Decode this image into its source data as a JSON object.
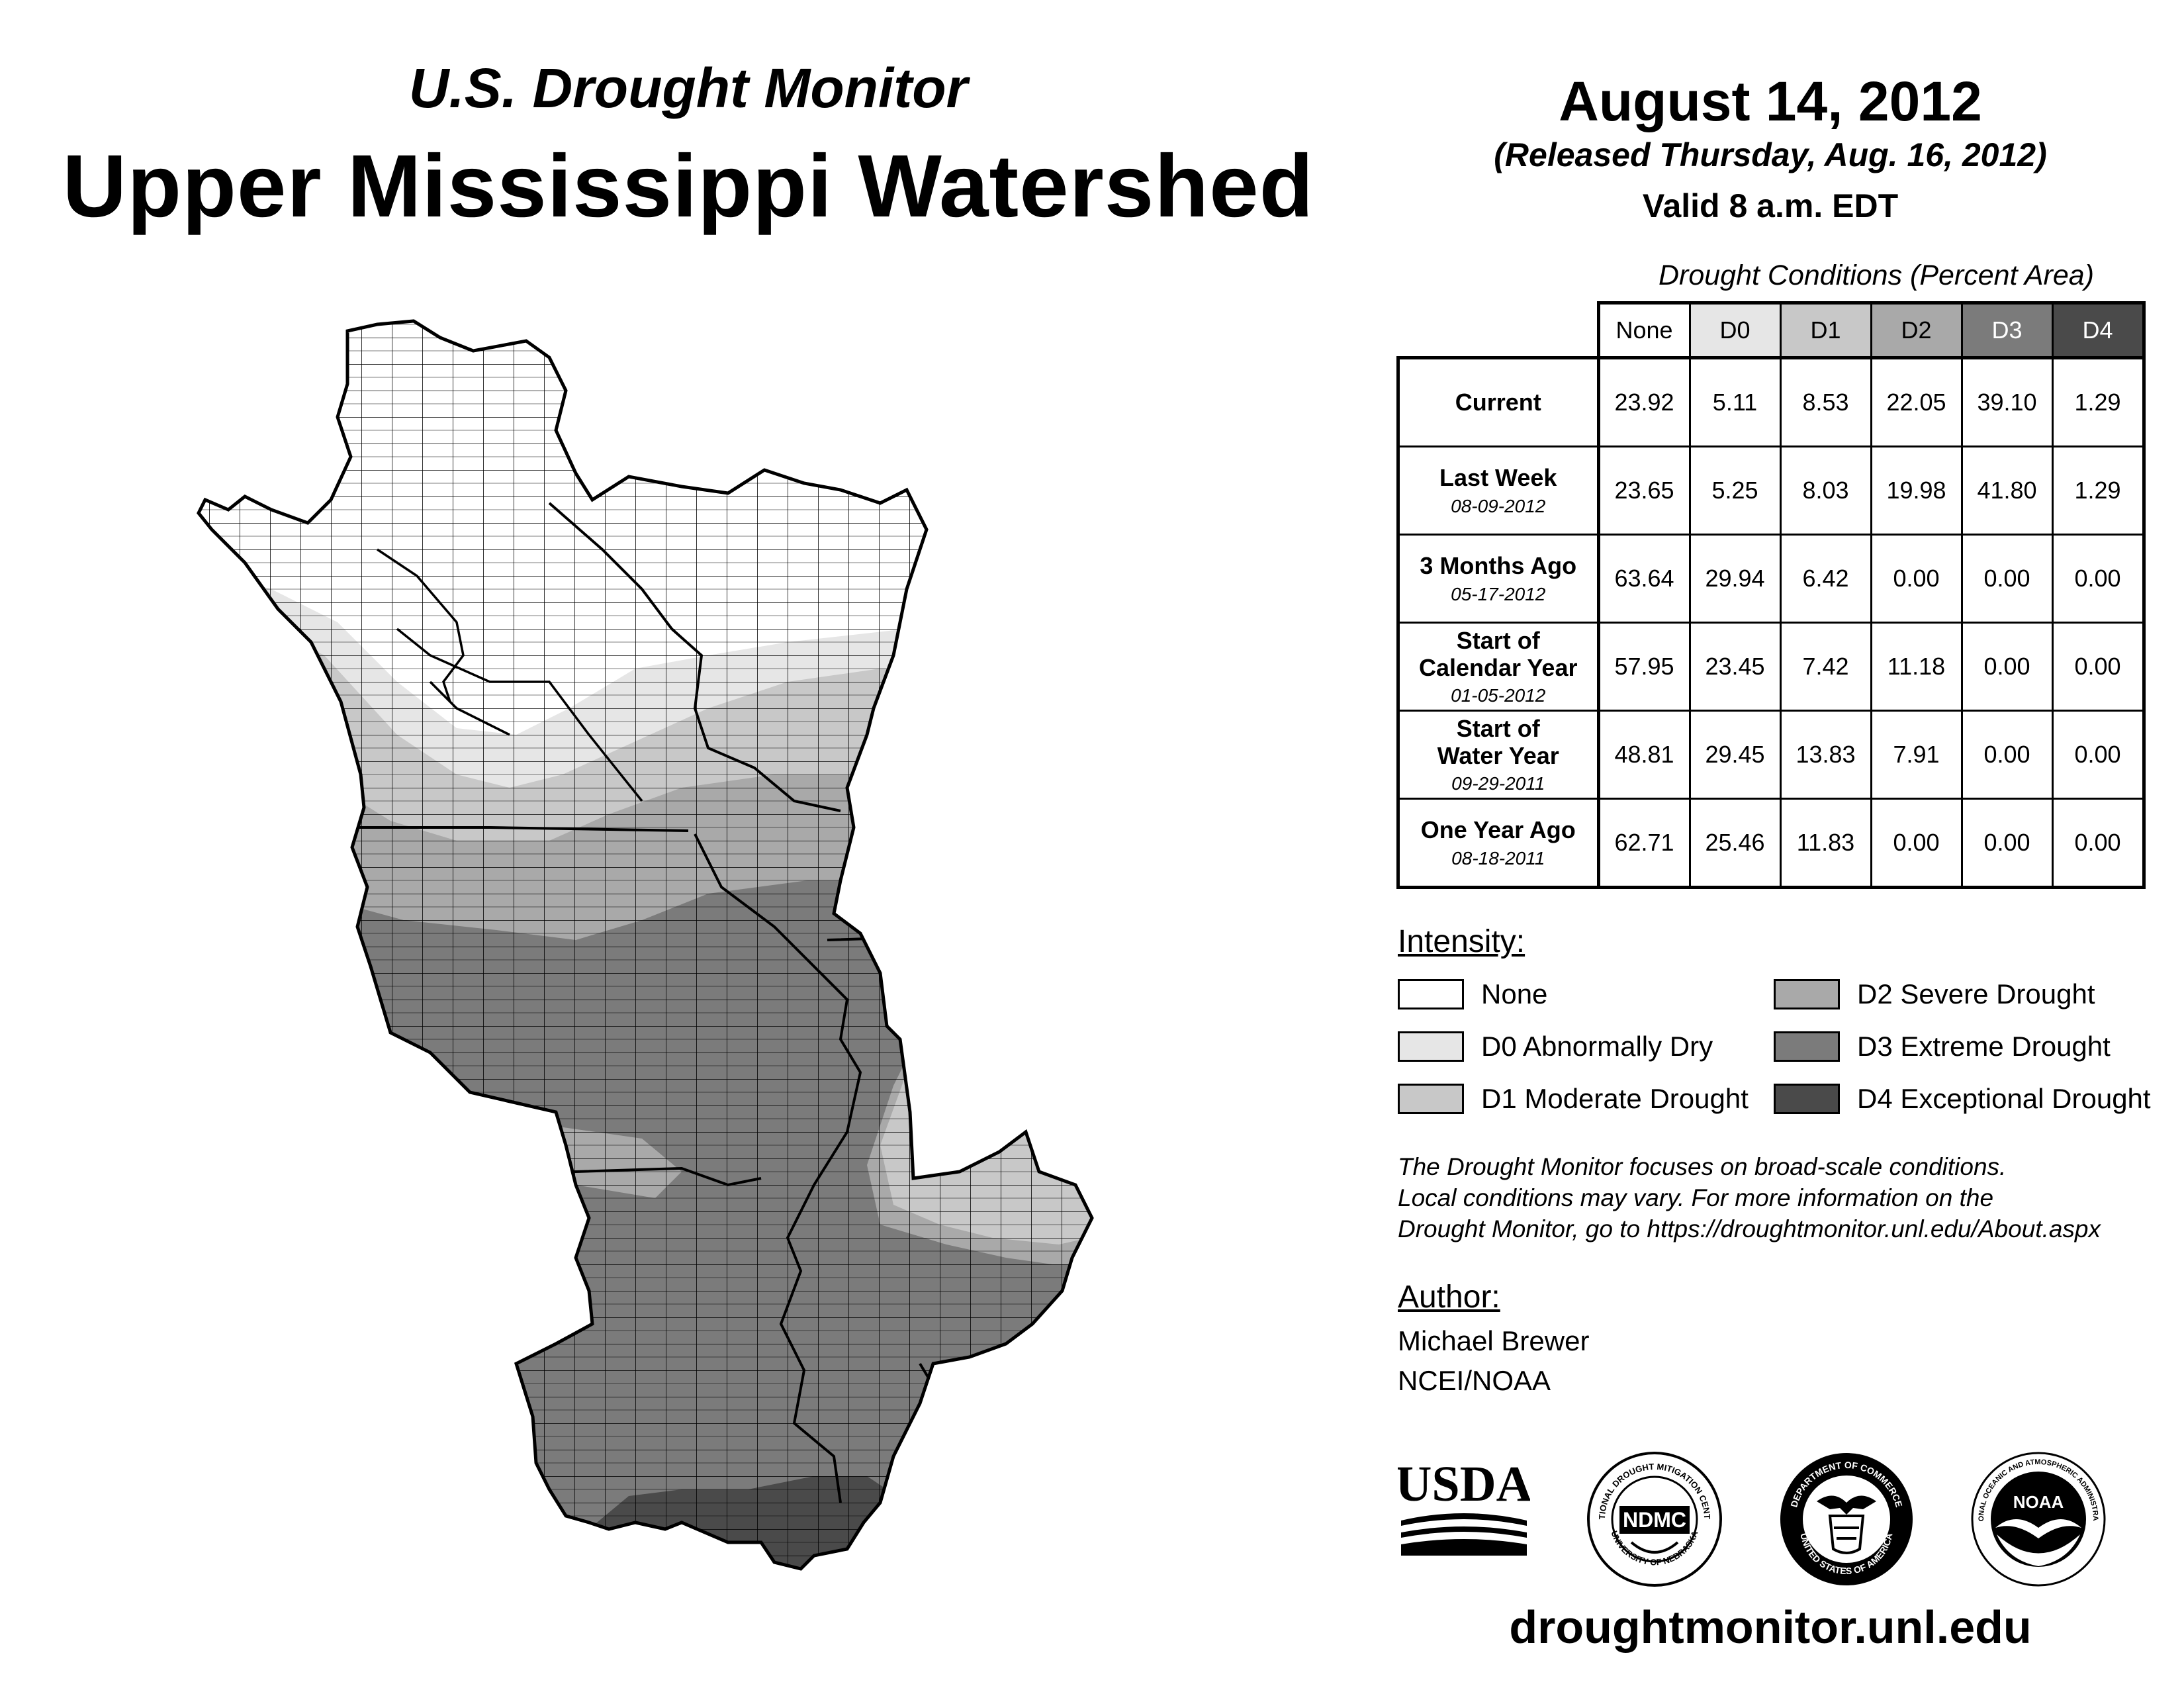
{
  "header": {
    "title_line1": "U.S. Drought Monitor",
    "title_line2": "Upper Mississippi Watershed",
    "date": "August 14, 2012",
    "released": "(Released Thursday, Aug. 16, 2012)",
    "valid": "Valid 8 a.m. EDT"
  },
  "table": {
    "caption": "Drought Conditions (Percent Area)",
    "columns": [
      "None",
      "D0",
      "D1",
      "D2",
      "D3",
      "D4"
    ],
    "rows": [
      {
        "label": "Current",
        "date": "",
        "values": [
          "23.92",
          "5.11",
          "8.53",
          "22.05",
          "39.10",
          "1.29"
        ]
      },
      {
        "label": "Last Week",
        "date": "08-09-2012",
        "values": [
          "23.65",
          "5.25",
          "8.03",
          "19.98",
          "41.80",
          "1.29"
        ]
      },
      {
        "label": "3 Months Ago",
        "date": "05-17-2012",
        "values": [
          "63.64",
          "29.94",
          "6.42",
          "0.00",
          "0.00",
          "0.00"
        ]
      },
      {
        "label": "Start of Calendar Year",
        "date": "01-05-2012",
        "values": [
          "57.95",
          "23.45",
          "7.42",
          "11.18",
          "0.00",
          "0.00"
        ]
      },
      {
        "label": "Start of Water Year",
        "date": "09-29-2011",
        "values": [
          "48.81",
          "29.45",
          "13.83",
          "7.91",
          "0.00",
          "0.00"
        ]
      },
      {
        "label": "One Year Ago",
        "date": "08-18-2011",
        "values": [
          "62.71",
          "25.46",
          "11.83",
          "0.00",
          "0.00",
          "0.00"
        ]
      }
    ]
  },
  "legend": {
    "heading": "Intensity:",
    "items": [
      {
        "label": "None",
        "color": "#ffffff"
      },
      {
        "label": "D0 Abnormally Dry",
        "color": "#e6e6e6"
      },
      {
        "label": "D1 Moderate Drought",
        "color": "#c8c8c8"
      },
      {
        "label": "D2 Severe Drought",
        "color": "#a9a9a9"
      },
      {
        "label": "D3 Extreme Drought",
        "color": "#7b7b7b"
      },
      {
        "label": "D4 Exceptional Drought",
        "color": "#4a4a4a"
      }
    ]
  },
  "note": {
    "line1": "The Drought Monitor focuses on broad-scale conditions.",
    "line2": "Local conditions may vary. For more information on the",
    "line3": "Drought Monitor, go to https://droughtmonitor.unl.edu/About.aspx"
  },
  "author": {
    "heading": "Author:",
    "name": "Michael Brewer",
    "org": "NCEI/NOAA"
  },
  "logos": {
    "usda": "USDA",
    "ndmc": "NDMC",
    "ndmc_ring_top": "NATIONAL DROUGHT MITIGATION CENTER",
    "ndmc_ring_bottom": "UNIVERSITY OF NEBRASKA",
    "doc_ring_top": "DEPARTMENT OF COMMERCE",
    "doc_ring_bottom": "UNITED STATES OF AMERICA",
    "noaa": "NOAA",
    "noaa_ring": "NATIONAL OCEANIC AND ATMOSPHERIC ADMINISTRATION"
  },
  "footer": {
    "url": "droughtmonitor.unl.edu"
  }
}
